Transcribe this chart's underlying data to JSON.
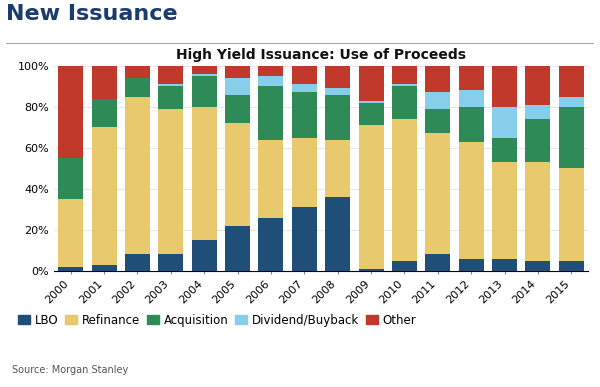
{
  "title": "New Issuance",
  "subtitle": "High Yield Issuance: Use of Proceeds",
  "source": "Source: Morgan Stanley",
  "years": [
    2000,
    2001,
    2002,
    2003,
    2004,
    2005,
    2006,
    2007,
    2008,
    2009,
    2010,
    2011,
    2012,
    2013,
    2014,
    2015
  ],
  "categories": [
    "LBO",
    "Refinance",
    "Acquisition",
    "Dividend/Buyback",
    "Other"
  ],
  "colors": [
    "#1f4e79",
    "#e8c96e",
    "#2e8b57",
    "#87ceeb",
    "#c0392b"
  ],
  "data": {
    "LBO": [
      2,
      3,
      8,
      8,
      15,
      22,
      26,
      31,
      36,
      1,
      5,
      8,
      6,
      6,
      5,
      5
    ],
    "Refinance": [
      33,
      67,
      77,
      71,
      65,
      50,
      38,
      34,
      28,
      70,
      69,
      59,
      57,
      47,
      48,
      45
    ],
    "Acquisition": [
      20,
      14,
      9,
      11,
      15,
      14,
      26,
      22,
      22,
      11,
      16,
      12,
      17,
      12,
      21,
      30
    ],
    "Dividend/Buyback": [
      0,
      0,
      0,
      1,
      1,
      8,
      5,
      4,
      3,
      1,
      1,
      8,
      8,
      15,
      7,
      5
    ],
    "Other": [
      45,
      16,
      6,
      9,
      4,
      6,
      5,
      9,
      11,
      17,
      9,
      13,
      12,
      20,
      19,
      15
    ]
  },
  "ylim": [
    0,
    100
  ],
  "ytick_labels": [
    "0%",
    "20%",
    "40%",
    "60%",
    "80%",
    "100%"
  ],
  "ytick_values": [
    0,
    20,
    40,
    60,
    80,
    100
  ],
  "title_color": "#1a3c6e",
  "title_fontsize": 16,
  "subtitle_fontsize": 10,
  "legend_fontsize": 8.5,
  "tick_fontsize": 8,
  "bar_width": 0.75
}
